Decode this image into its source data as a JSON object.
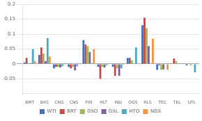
{
  "chart_data": {
    "type": "bar",
    "categories": [
      "BMT",
      "BRS",
      "CNG",
      "CNS",
      "FIN",
      "HLT",
      "IND",
      "OGS",
      "RLS",
      "TEC",
      "TEL",
      "UTL"
    ],
    "series": [
      {
        "name": "WTI",
        "color": "#4472C4",
        "values": [
          0.005,
          0.03,
          -0.015,
          -0.01,
          0.08,
          -0.01,
          -0.01,
          0.02,
          0.13,
          -0.02,
          0.0,
          -0.005
        ]
      },
      {
        "name": "BRT",
        "color": "#C0504D",
        "values": [
          0.02,
          0.055,
          -0.01,
          -0.015,
          0.065,
          -0.05,
          -0.04,
          0.02,
          0.155,
          -0.005,
          0.018,
          0.0
        ]
      },
      {
        "name": "GSO",
        "color": "#9BBB59",
        "values": [
          0.003,
          0.035,
          -0.01,
          -0.01,
          0.06,
          -0.01,
          -0.015,
          0.012,
          0.12,
          -0.02,
          0.01,
          -0.005
        ]
      },
      {
        "name": "GSL",
        "color": "#8064A2",
        "values": [
          0.003,
          0.01,
          -0.012,
          -0.022,
          0.04,
          -0.012,
          -0.04,
          0.0,
          0.06,
          -0.018,
          0.0,
          0.0
        ]
      },
      {
        "name": "HTO",
        "color": "#4BACC6",
        "values": [
          0.05,
          0.087,
          -0.008,
          -0.008,
          0.003,
          -0.005,
          -0.015,
          0.055,
          0.0,
          0.0,
          0.0,
          -0.028
        ]
      },
      {
        "name": "NGS",
        "color": "#F79646",
        "values": [
          0.01,
          0.025,
          -0.003,
          0.0,
          0.05,
          0.0,
          -0.003,
          0.0,
          0.085,
          -0.02,
          0.0,
          0.0
        ]
      }
    ],
    "ylim": [
      -0.1,
      0.2
    ],
    "yticks": [
      -0.05,
      0,
      0.05,
      0.1,
      0.15,
      0.2
    ],
    "grid": true,
    "legend": "bottom"
  }
}
